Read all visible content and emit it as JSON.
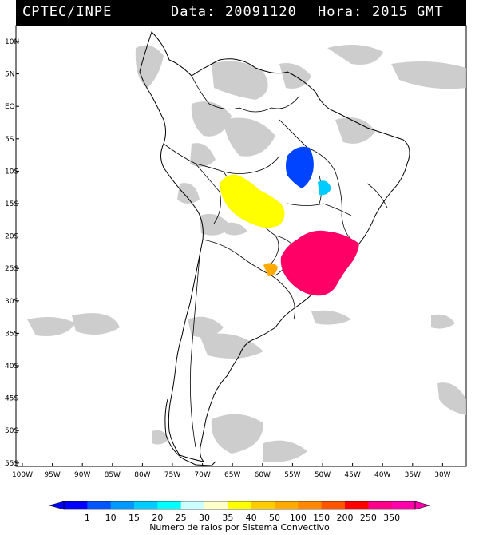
{
  "header": {
    "source": "CPTEC/INPE",
    "date_label": "Data:",
    "date": "20091120",
    "time_label": "Hora:",
    "time": "2015",
    "timezone": "GMT"
  },
  "map": {
    "lat_labels": [
      "10N",
      "5N",
      "EQ",
      "5S",
      "10S",
      "15S",
      "20S",
      "25S",
      "30S",
      "35S",
      "40S",
      "45S",
      "50S",
      "55S"
    ],
    "lon_labels": [
      "100W",
      "95W",
      "90W",
      "85W",
      "80W",
      "75W",
      "70W",
      "65W",
      "60W",
      "55W",
      "50W",
      "45W",
      "40W",
      "35W",
      "30W"
    ],
    "lat_values": [
      10,
      5,
      0,
      -5,
      -10,
      -15,
      -20,
      -25,
      -30,
      -35,
      -40,
      -45,
      -50,
      -55
    ],
    "lon_values": [
      -100,
      -95,
      -90,
      -85,
      -80,
      -75,
      -70,
      -65,
      -60,
      -55,
      -50,
      -45,
      -40,
      -35,
      -30
    ]
  },
  "colorbar": {
    "label": "Numero de raios por Sistema Convectivo",
    "ticks": [
      "1",
      "10",
      "15",
      "20",
      "25",
      "30",
      "35",
      "40",
      "50",
      "100",
      "150",
      "200",
      "250",
      "350"
    ],
    "colors": [
      "#0000ff",
      "#0055ff",
      "#0099ff",
      "#00ccff",
      "#00ffff",
      "#ccffff",
      "#ffffcc",
      "#ffff00",
      "#ffcc00",
      "#ffaa00",
      "#ff8800",
      "#ff5500",
      "#ff0000",
      "#ff0088",
      "#ff00aa"
    ]
  },
  "colors": {
    "cloud": "#c8c8c8",
    "blue": "#0044ff",
    "cyan": "#00ccff",
    "yellow": "#ffff00",
    "orange": "#ffaa00",
    "magenta": "#ff0066"
  }
}
